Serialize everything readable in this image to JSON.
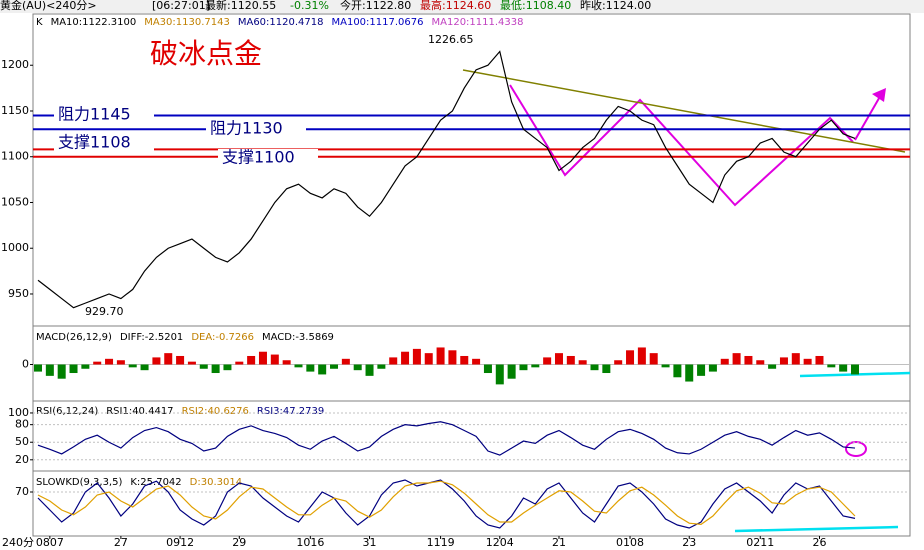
{
  "header": {
    "items": [
      {
        "text": "黄金(AU)<240分>",
        "color": "#000000"
      },
      {
        "text": "[06:27:01]",
        "color": "#000000"
      },
      {
        "text": "最新:1120.55",
        "color": "#000000"
      },
      {
        "text": "-0.31%",
        "color": "#008000"
      },
      {
        "text": "今开:1122.80",
        "color": "#000000"
      },
      {
        "text": "最高:1124.60",
        "color": "#c00000"
      },
      {
        "text": "最低:1108.40",
        "color": "#008000"
      },
      {
        "text": "昨收:1124.00",
        "color": "#000000"
      }
    ],
    "period_label": "240分"
  },
  "chart_data": [
    {
      "type": "line",
      "title": "破冰点金",
      "legend": [
        {
          "text": "K",
          "color": "#000000"
        },
        {
          "text": "MA10:1122.3100",
          "color": "#000000"
        },
        {
          "text": "MA30:1130.7143",
          "color": "#c08000"
        },
        {
          "text": "MA60:1120.4718",
          "color": "#000080"
        },
        {
          "text": "MA100:1117.0676",
          "color": "#0000c0"
        },
        {
          "text": "MA120:1111.4338",
          "color": "#c040c0"
        }
      ],
      "categories": [
        null,
        "0807",
        null,
        null,
        null,
        null,
        null,
        "27",
        null,
        null,
        null,
        null,
        "0912",
        null,
        null,
        null,
        null,
        "29",
        null,
        null,
        null,
        null,
        null,
        "1016",
        null,
        null,
        null,
        null,
        "31",
        null,
        null,
        null,
        null,
        null,
        "1119",
        null,
        null,
        null,
        null,
        "1204",
        null,
        null,
        null,
        null,
        "21",
        null,
        null,
        null,
        null,
        null,
        "0108",
        null,
        null,
        null,
        null,
        "23",
        null,
        null,
        null,
        null,
        null,
        "0211",
        null,
        null,
        null,
        null,
        "26",
        null,
        null,
        null
      ],
      "series": [
        {
          "name": "K",
          "color": "#000000",
          "values": [
            965,
            955,
            945,
            935,
            940,
            945,
            950,
            945,
            955,
            975,
            990,
            1000,
            1005,
            1010,
            1000,
            990,
            985,
            995,
            1010,
            1030,
            1050,
            1065,
            1070,
            1060,
            1055,
            1065,
            1060,
            1045,
            1035,
            1050,
            1070,
            1090,
            1100,
            1120,
            1140,
            1150,
            1175,
            1195,
            1200,
            1215,
            1160,
            1130,
            1120,
            1110,
            1085,
            1095,
            1110,
            1120,
            1140,
            1155,
            1150,
            1140,
            1135,
            1110,
            1090,
            1070,
            1060,
            1050,
            1080,
            1095,
            1100,
            1115,
            1120,
            1105,
            1100,
            1115,
            1130,
            1140,
            1125,
            1120
          ]
        }
      ],
      "levels": [
        {
          "label": "阻力1145",
          "value": 1145,
          "color": "#0000c0"
        },
        {
          "label": "阻力1130",
          "value": 1130,
          "color": "#0000c0"
        },
        {
          "label": "支撑1108",
          "value": 1108,
          "color": "#e00000"
        },
        {
          "label": "支撑1100",
          "value": 1100,
          "color": "#e00000"
        }
      ],
      "annotations": [
        {
          "text": "1226.65"
        },
        {
          "text": "929.70"
        }
      ],
      "ylim": [
        915,
        1256
      ],
      "yticks": [
        950,
        1000,
        1050,
        1100,
        1150,
        1200
      ]
    },
    {
      "type": "bar",
      "legend": [
        {
          "text": "MACD(26,12,9)",
          "color": "#000000"
        },
        {
          "text": "DIFF:-2.5201",
          "color": "#000000"
        },
        {
          "text": "DEA:-0.7266",
          "color": "#c08000"
        },
        {
          "text": "MACD:-3.5869",
          "color": "#000000"
        }
      ],
      "series": [
        {
          "name": "MACD",
          "color": "#e00000",
          "negative_color": "#008000",
          "values": [
            -5,
            -8,
            -10,
            -6,
            -3,
            2,
            4,
            3,
            -2,
            -4,
            5,
            8,
            6,
            2,
            -3,
            -6,
            -4,
            2,
            6,
            9,
            7,
            3,
            -2,
            -5,
            -7,
            -3,
            4,
            -4,
            -8,
            -3,
            5,
            9,
            11,
            8,
            12,
            10,
            6,
            4,
            -6,
            -14,
            -10,
            -4,
            -2,
            5,
            8,
            6,
            3,
            -4,
            -6,
            3,
            10,
            12,
            8,
            -2,
            -9,
            -12,
            -8,
            -5,
            4,
            8,
            6,
            3,
            -3,
            5,
            8,
            4,
            6,
            -2,
            -5,
            -7
          ]
        }
      ],
      "ylim": [
        -25,
        25
      ],
      "yticks": [
        0
      ]
    },
    {
      "type": "line",
      "legend": [
        {
          "text": "RSI(6,12,24)",
          "color": "#000000"
        },
        {
          "text": "RSI1:40.4417",
          "color": "#000000"
        },
        {
          "text": "RSI2:40.6276",
          "color": "#c08000"
        },
        {
          "text": "RSI3:47.2739",
          "color": "#000080"
        }
      ],
      "series": [
        {
          "name": "RSI1",
          "color": "#000080",
          "values": [
            45,
            38,
            30,
            42,
            55,
            62,
            50,
            40,
            58,
            70,
            75,
            68,
            55,
            48,
            35,
            40,
            60,
            72,
            78,
            70,
            65,
            58,
            45,
            38,
            52,
            60,
            48,
            35,
            42,
            60,
            72,
            80,
            78,
            82,
            85,
            80,
            70,
            60,
            35,
            28,
            40,
            52,
            48,
            62,
            70,
            58,
            45,
            38,
            55,
            68,
            72,
            65,
            55,
            40,
            32,
            30,
            38,
            50,
            62,
            68,
            60,
            55,
            45,
            58,
            70,
            62,
            66,
            55,
            42,
            40
          ]
        }
      ],
      "ylim": [
        6,
        117
      ],
      "yticks": [
        20,
        50,
        80,
        100
      ]
    },
    {
      "type": "line",
      "legend": [
        {
          "text": "SLOWKD(9,3,3,5)",
          "color": "#000000"
        },
        {
          "text": "K:25.7042",
          "color": "#000000"
        },
        {
          "text": "D:30.3014",
          "color": "#c08000"
        }
      ],
      "series": [
        {
          "name": "K",
          "color": "#000080",
          "values": [
            60,
            40,
            20,
            35,
            70,
            85,
            60,
            30,
            50,
            80,
            88,
            70,
            40,
            25,
            15,
            30,
            70,
            85,
            80,
            60,
            45,
            30,
            20,
            45,
            70,
            60,
            35,
            15,
            30,
            65,
            85,
            90,
            80,
            85,
            90,
            75,
            55,
            30,
            15,
            10,
            30,
            60,
            50,
            75,
            85,
            60,
            35,
            20,
            50,
            80,
            85,
            70,
            50,
            25,
            15,
            10,
            20,
            50,
            75,
            85,
            70,
            55,
            35,
            65,
            85,
            75,
            80,
            55,
            30,
            26
          ]
        },
        {
          "name": "D",
          "color": "#e0a000",
          "values": [
            65,
            55,
            40,
            32,
            45,
            65,
            70,
            55,
            45,
            60,
            75,
            80,
            65,
            45,
            30,
            25,
            40,
            62,
            78,
            75,
            60,
            45,
            32,
            32,
            48,
            60,
            55,
            38,
            28,
            40,
            62,
            80,
            85,
            85,
            88,
            82,
            68,
            50,
            32,
            20,
            20,
            35,
            48,
            60,
            72,
            70,
            55,
            38,
            35,
            55,
            72,
            78,
            65,
            48,
            30,
            18,
            16,
            30,
            52,
            72,
            78,
            68,
            52,
            50,
            65,
            75,
            78,
            70,
            50,
            30
          ]
        }
      ],
      "ylim": [
        0,
        100
      ],
      "yticks": [
        70
      ]
    }
  ]
}
